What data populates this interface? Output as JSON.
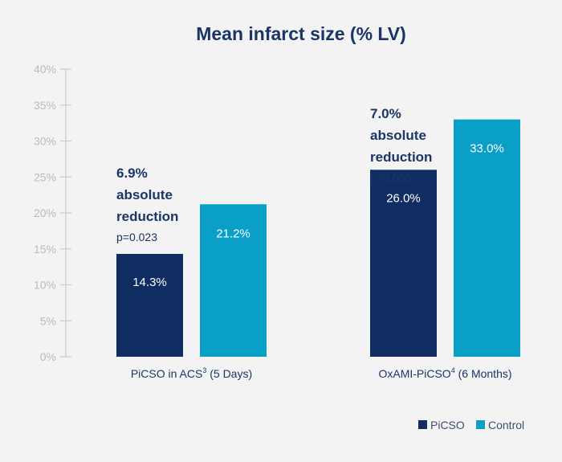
{
  "chart_data": {
    "type": "bar",
    "title": "Mean infarct size (% LV)",
    "xlabel": "",
    "ylabel": "",
    "ylim": [
      0,
      40
    ],
    "yticks": [
      0,
      5,
      10,
      15,
      20,
      25,
      30,
      35,
      40
    ],
    "ytick_labels": [
      "0%",
      "5%",
      "10%",
      "15%",
      "20%",
      "25%",
      "30%",
      "35%",
      "40%"
    ],
    "grid": false,
    "categories": [
      {
        "name": "PiCSO in ACS",
        "sup": "3",
        "suffix": " (5 Days)"
      },
      {
        "name": "OxAMI-PiCSO",
        "sup": "4",
        "suffix": " (6 Months)"
      }
    ],
    "series": [
      {
        "name": "PiCSO",
        "color": "#0f2d63",
        "values": [
          14.3,
          26.0
        ],
        "labels": [
          "14.3%",
          "26.0%"
        ]
      },
      {
        "name": "Control",
        "color": "#0a9fc7",
        "values": [
          21.2,
          33.0
        ],
        "labels": [
          "21.2%",
          "33.0%"
        ]
      }
    ],
    "annotations": [
      {
        "lines": [
          "6.9%",
          "absolute",
          "reduction"
        ],
        "p": "p=0.023"
      },
      {
        "lines": [
          "7.0%",
          "absolute",
          "reduction"
        ],
        "p": "p=0.006"
      }
    ],
    "legend": {
      "position": "bottom-right",
      "entries": [
        "PiCSO",
        "Control"
      ]
    }
  }
}
